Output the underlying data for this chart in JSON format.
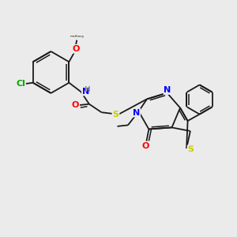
{
  "bg_color": "#ebebeb",
  "bond_color": "#1a1a1a",
  "atom_colors": {
    "N": "#0000ff",
    "O": "#ff0000",
    "S": "#cccc00",
    "Cl": "#00aa00",
    "H": "#888888",
    "C": "#1a1a1a"
  },
  "font_size_atom": 8,
  "font_size_small": 6.5,
  "bond_lw": 1.3,
  "double_lw": 1.1,
  "double_sep": 0.08
}
